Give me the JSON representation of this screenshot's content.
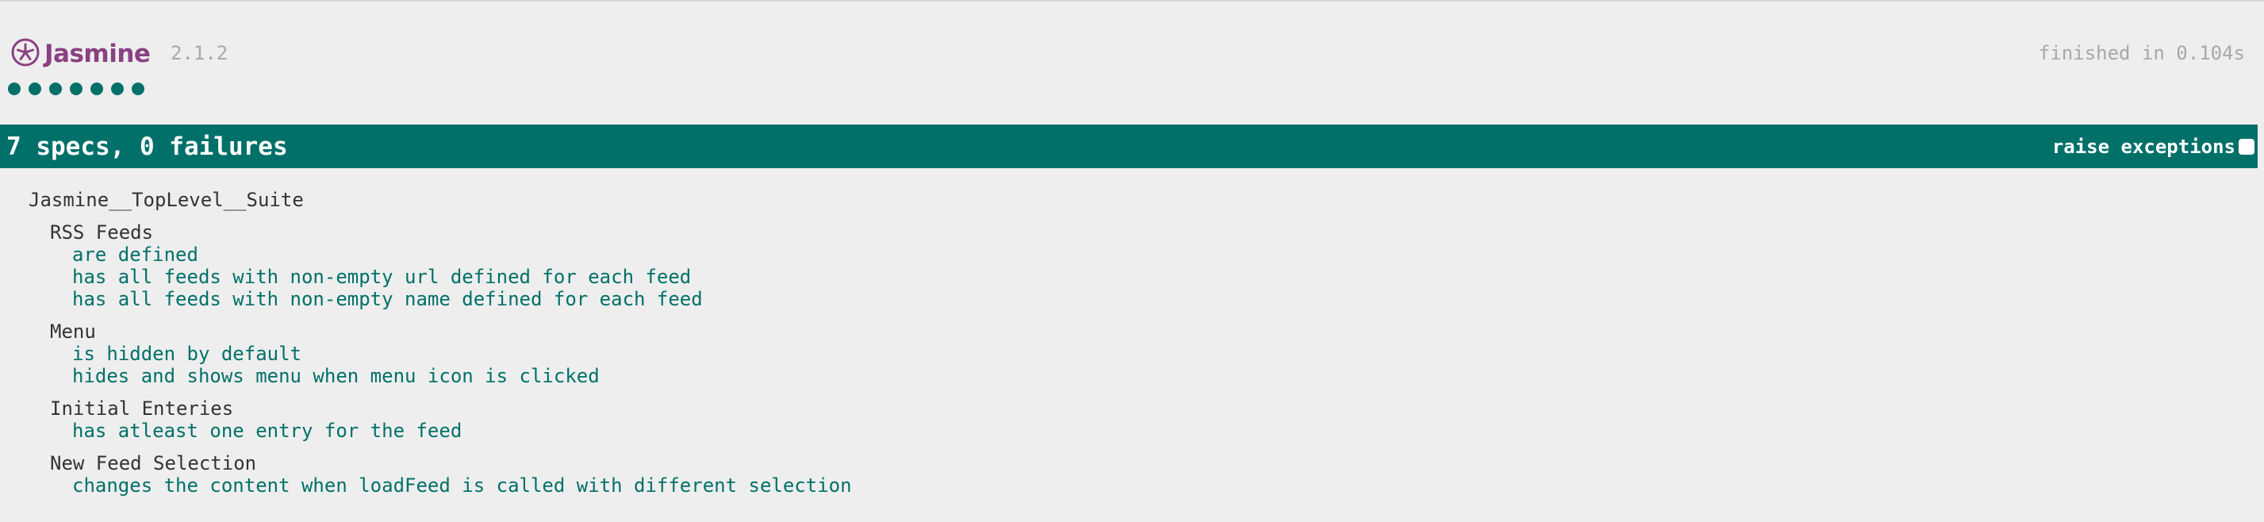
{
  "banner": {
    "brand": "Jasmine",
    "version": "2.1.2",
    "duration": "finished in 0.104s",
    "passed_dots": 7,
    "colors": {
      "brand": "#8a4182",
      "pass": "#007069"
    },
    "icons": [
      "jasmine-logo-icon"
    ]
  },
  "bar": {
    "summary": "7 specs, 0 failures",
    "raise_exceptions_label": "raise exceptions",
    "raise_exceptions_checked": false
  },
  "results": {
    "top_suite": "Jasmine__TopLevel__Suite",
    "suites": [
      {
        "name": "RSS Feeds",
        "specs": [
          "are defined",
          "has all feeds with non-empty url defined for each feed",
          "has all feeds with non-empty name defined for each feed"
        ]
      },
      {
        "name": "Menu",
        "specs": [
          "is hidden by default",
          "hides and shows menu when menu icon is clicked"
        ]
      },
      {
        "name": "Initial Enteries",
        "specs": [
          "has atleast one entry for the feed"
        ]
      },
      {
        "name": "New Feed Selection",
        "specs": [
          "changes the content when loadFeed is called with different selection"
        ]
      }
    ]
  }
}
